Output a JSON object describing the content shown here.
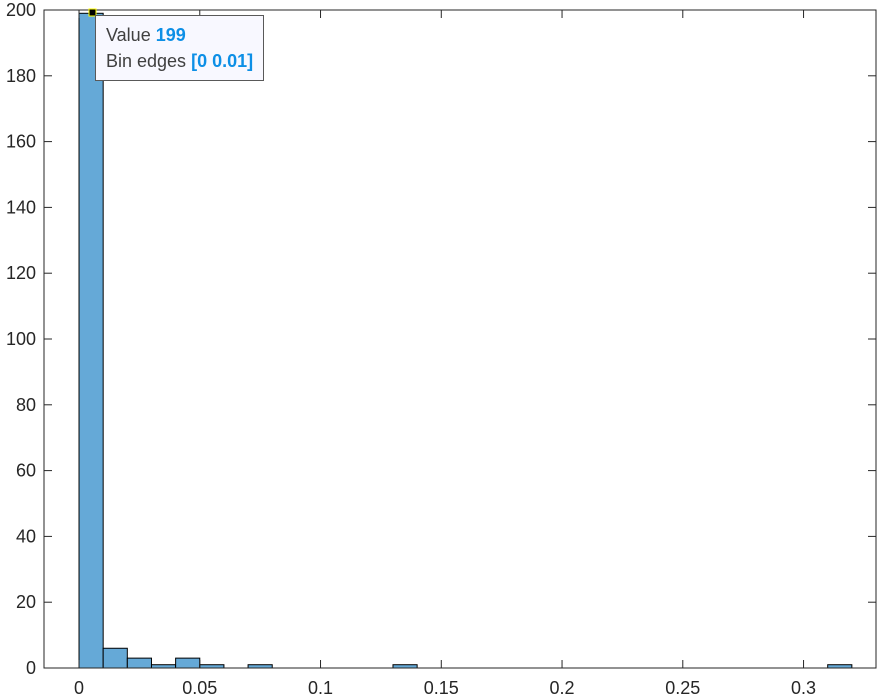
{
  "chart_data": {
    "type": "bar",
    "subtype": "histogram",
    "title": "",
    "xlabel": "",
    "ylabel": "",
    "xlim": [
      -0.0145,
      0.33
    ],
    "ylim": [
      0,
      200
    ],
    "bin_width": 0.01,
    "bins": [
      {
        "edges": [
          0,
          0.01
        ],
        "count": 199
      },
      {
        "edges": [
          0.01,
          0.02
        ],
        "count": 6
      },
      {
        "edges": [
          0.02,
          0.03
        ],
        "count": 3
      },
      {
        "edges": [
          0.03,
          0.04
        ],
        "count": 1
      },
      {
        "edges": [
          0.04,
          0.05
        ],
        "count": 3
      },
      {
        "edges": [
          0.05,
          0.06
        ],
        "count": 1
      },
      {
        "edges": [
          0.07,
          0.08
        ],
        "count": 1
      },
      {
        "edges": [
          0.13,
          0.14
        ],
        "count": 1
      },
      {
        "edges": [
          0.31,
          0.32
        ],
        "count": 1
      }
    ],
    "x_ticks": [
      "0",
      "0.05",
      "0.1",
      "0.15",
      "0.2",
      "0.25",
      "0.3"
    ],
    "x_tick_values": [
      0,
      0.05,
      0.1,
      0.15,
      0.2,
      0.25,
      0.3
    ],
    "y_ticks": [
      "0",
      "20",
      "40",
      "60",
      "80",
      "100",
      "120",
      "140",
      "160",
      "180",
      "200"
    ],
    "y_tick_values": [
      0,
      20,
      40,
      60,
      80,
      100,
      120,
      140,
      160,
      180,
      200
    ],
    "grid": false,
    "colors": {
      "bar_fill": "#65a9d7",
      "bar_edge": "#000000",
      "axes": "#262626"
    }
  },
  "datatip": {
    "value_label": "Value",
    "value": "199",
    "edges_label": "Bin edges",
    "edges": "[0 0.01]"
  }
}
